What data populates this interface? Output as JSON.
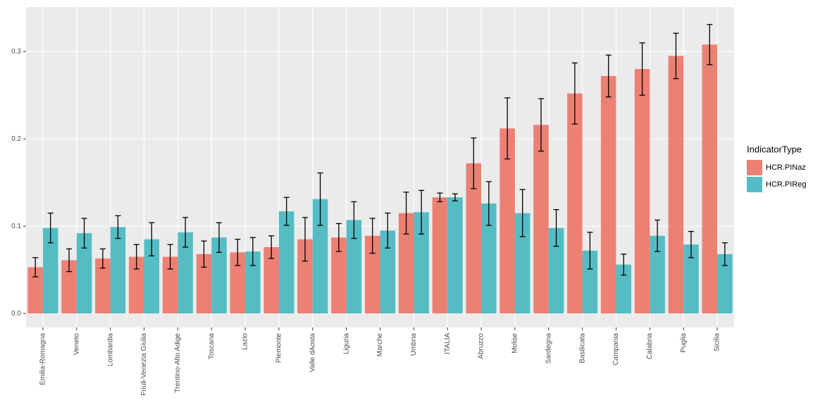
{
  "chart_data": {
    "type": "bar",
    "categories": [
      "Emilia-Romagna",
      "Veneto",
      "Lombardia",
      "Friuli-Venezia Giulia",
      "Trentino-Alto Adige",
      "Toscana",
      "Lazio",
      "Piemonte",
      "Valle dAosta",
      "Liguria",
      "Marche",
      "Umbria",
      "ITALIA",
      "Abruzzo",
      "Molise",
      "Sardegna",
      "Basilicata",
      "Campania",
      "Calabria",
      "Puglia",
      "Sicilia"
    ],
    "series": [
      {
        "name": "HCR.PINaz",
        "color": "#ec8073",
        "values": [
          0.053,
          0.061,
          0.063,
          0.065,
          0.065,
          0.068,
          0.07,
          0.076,
          0.085,
          0.087,
          0.089,
          0.115,
          0.133,
          0.172,
          0.212,
          0.216,
          0.252,
          0.272,
          0.28,
          0.295,
          0.308
        ],
        "errors": [
          0.011,
          0.013,
          0.011,
          0.014,
          0.014,
          0.015,
          0.015,
          0.013,
          0.025,
          0.016,
          0.02,
          0.024,
          0.005,
          0.029,
          0.035,
          0.03,
          0.035,
          0.024,
          0.03,
          0.026,
          0.023
        ]
      },
      {
        "name": "HCR.PIReg",
        "color": "#55bcc4",
        "values": [
          0.098,
          0.092,
          0.099,
          0.085,
          0.093,
          0.087,
          0.071,
          0.117,
          0.131,
          0.107,
          0.095,
          0.116,
          0.133,
          0.126,
          0.115,
          0.098,
          0.072,
          0.056,
          0.089,
          0.079,
          0.068
        ],
        "errors": [
          0.017,
          0.017,
          0.013,
          0.019,
          0.017,
          0.017,
          0.016,
          0.016,
          0.03,
          0.021,
          0.02,
          0.025,
          0.004,
          0.025,
          0.027,
          0.021,
          0.021,
          0.012,
          0.018,
          0.015,
          0.013
        ]
      }
    ],
    "ylim": [
      -0.016,
      0.351
    ],
    "yticks": [
      {
        "value": 0,
        "label": "0.0"
      },
      0.1,
      0.2,
      0.3
    ],
    "grid": true,
    "legend_title": "IndicatorType",
    "legend_position": "right"
  }
}
